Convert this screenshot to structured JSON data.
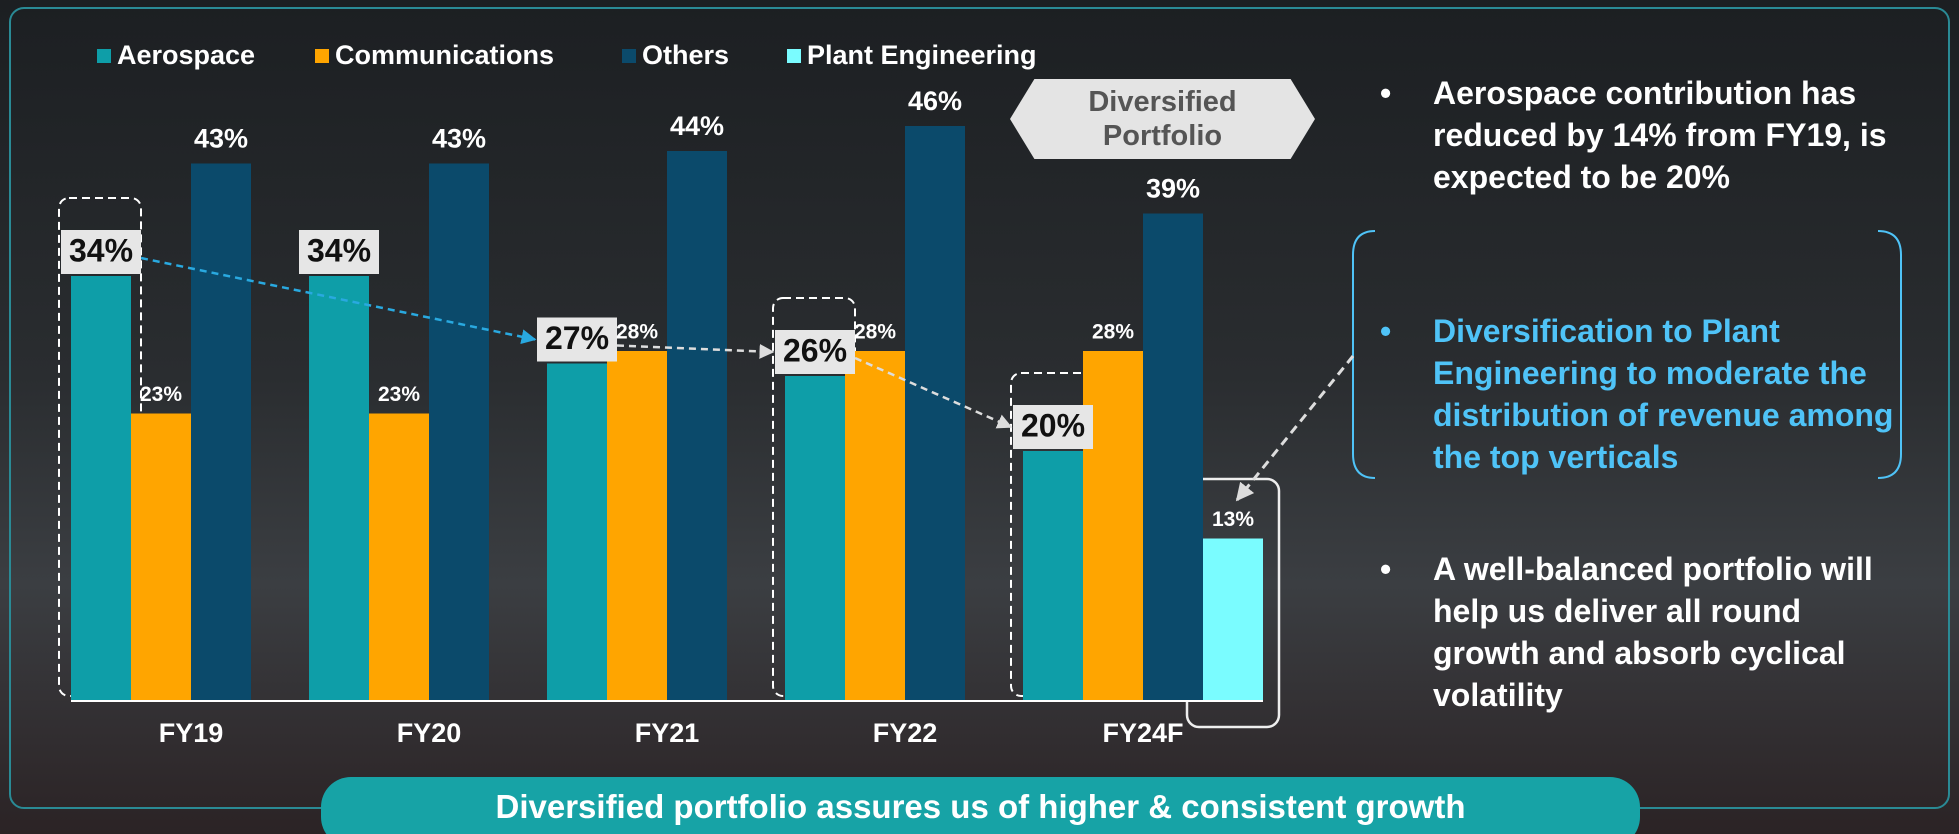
{
  "chart_data": {
    "type": "bar",
    "categories": [
      "FY19",
      "FY20",
      "FY21",
      "FY22",
      "FY24F"
    ],
    "series": [
      {
        "name": "Aerospace",
        "color": "#0e9ea8",
        "values": [
          34,
          34,
          27,
          26,
          20
        ],
        "value_labels": [
          "34%",
          "34%",
          "27%",
          "26%",
          "20%"
        ]
      },
      {
        "name": "Communications",
        "color": "#ffa500",
        "values": [
          23,
          23,
          28,
          28,
          28
        ],
        "value_labels": [
          "23%",
          "23%",
          "28%",
          "28%",
          "28%"
        ]
      },
      {
        "name": "Others",
        "color": "#0b4a6b",
        "values": [
          43,
          43,
          44,
          46,
          39
        ],
        "value_labels": [
          "43%",
          "43%",
          "44%",
          "46%",
          "39%"
        ]
      },
      {
        "name": "Plant Engineering",
        "color": "#7afcff",
        "values": [
          null,
          null,
          null,
          null,
          13
        ],
        "value_labels": [
          null,
          null,
          null,
          null,
          "13%"
        ]
      }
    ],
    "annotation": "Diversified Portfolio"
  },
  "bullets": [
    "Aerospace contribution has reduced by 14% from FY19, is expected to be 20%",
    "Diversification to Plant Engineering to moderate the distribution of revenue among the top verticals",
    "A well-balanced portfolio will help us deliver all round growth and absorb cyclical volatility"
  ],
  "banner": "Diversified portfolio assures us of higher & consistent growth"
}
